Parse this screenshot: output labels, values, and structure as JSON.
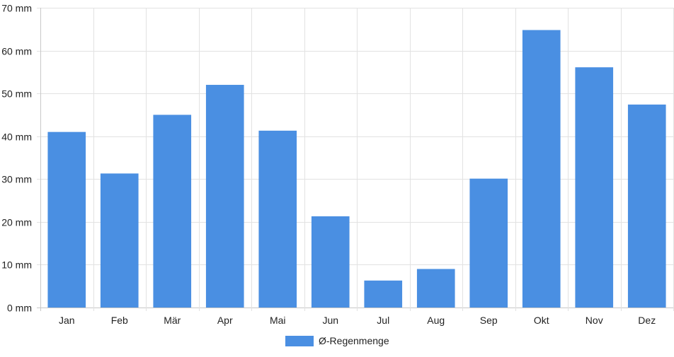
{
  "chart_data": {
    "type": "bar",
    "title": "",
    "xlabel": "",
    "ylabel": "",
    "categories": [
      "Jan",
      "Feb",
      "Mär",
      "Apr",
      "Mai",
      "Jun",
      "Jul",
      "Aug",
      "Sep",
      "Okt",
      "Nov",
      "Dez"
    ],
    "series": [
      {
        "name": "Ø-Regenmenge",
        "color": "#4a8fe2",
        "values": [
          41,
          31.3,
          45,
          52,
          41.3,
          21.3,
          6.3,
          9,
          30.1,
          64.8,
          56.1,
          47.4
        ]
      }
    ],
    "ylim": [
      0,
      70
    ],
    "y_ticks": [
      0,
      10,
      20,
      30,
      40,
      50,
      60,
      70
    ],
    "y_tick_suffix": " mm",
    "grid": true,
    "legend_position": "bottom-center",
    "colors": {
      "grid": "#e2e2e2",
      "axis": "#c8c8c8",
      "text": "#222222"
    }
  }
}
